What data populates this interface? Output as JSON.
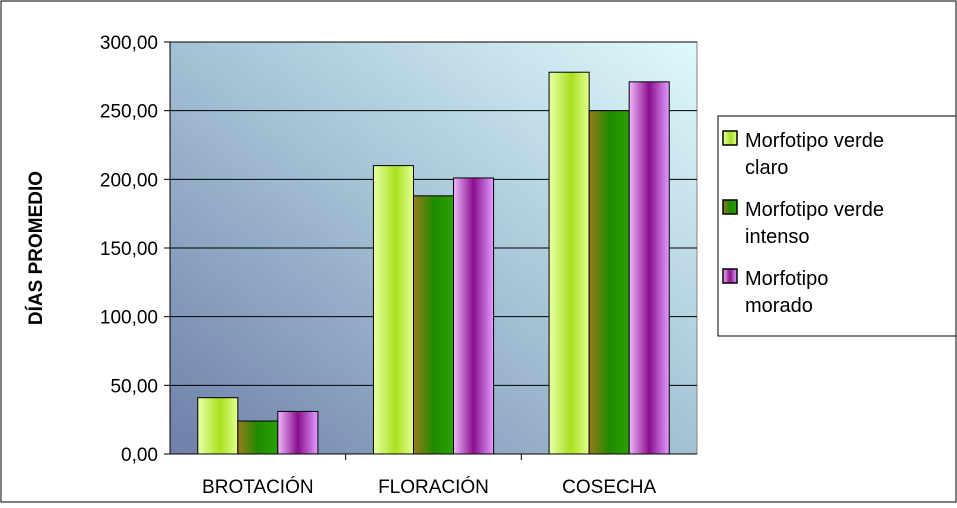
{
  "chart_data": {
    "type": "bar",
    "title": "",
    "xlabel": "",
    "ylabel": "DÍAS PROMEDIO",
    "categories": [
      "BROTACIÓN",
      "FLORACIÓN",
      "COSECHA"
    ],
    "ylim": [
      0,
      300
    ],
    "yticks": [
      0,
      50,
      100,
      150,
      200,
      250,
      300
    ],
    "ytick_labels": [
      "0,00",
      "50,00",
      "100,00",
      "150,00",
      "200,00",
      "250,00",
      "300,00"
    ],
    "grid": true,
    "legend_position": "right",
    "series": [
      {
        "name": "Morfotipo verde claro",
        "values": [
          41,
          210,
          278
        ],
        "color": "#c6ef6a"
      },
      {
        "name": "Morfotipo verde intenso",
        "values": [
          24,
          188,
          250
        ],
        "color": "#2e8b00"
      },
      {
        "name": "Morfotipo morado",
        "values": [
          31,
          201,
          271
        ],
        "color": "#c040d0"
      }
    ]
  }
}
